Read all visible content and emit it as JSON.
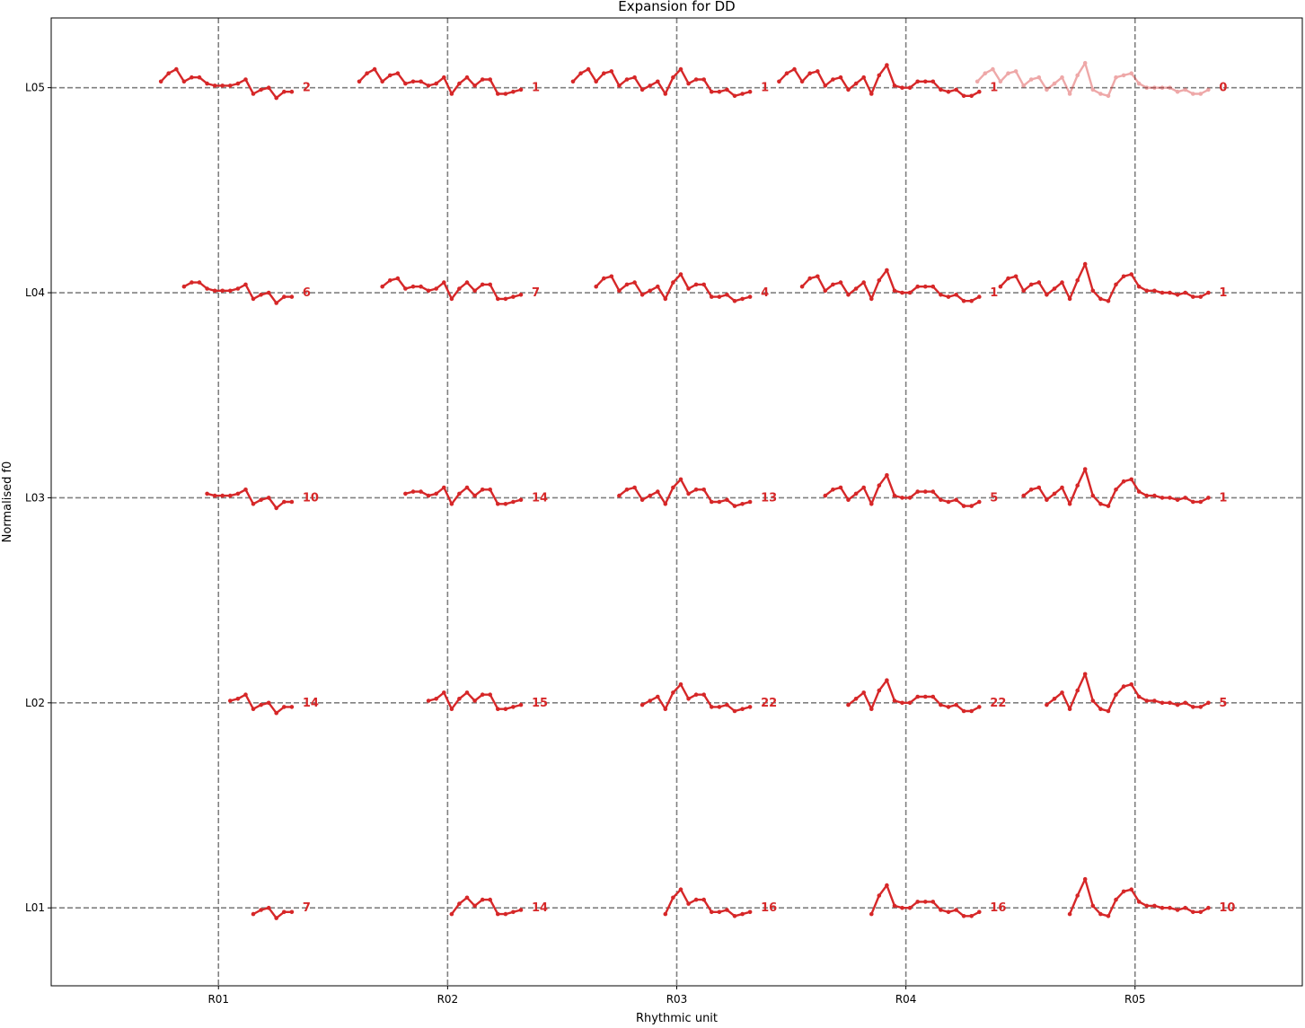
{
  "chart_data": {
    "type": "line",
    "title": "Expansion for DD",
    "xlabel": "Rhythmic unit",
    "ylabel": "Normalised f0",
    "x_ticks": [
      "R01",
      "R02",
      "R03",
      "R04",
      "R05"
    ],
    "y_ticks": [
      "L01",
      "L02",
      "L03",
      "L04",
      "L05"
    ],
    "xlim": [
      0.27,
      5.73
    ],
    "ylim": [
      0.62,
      5.34
    ],
    "grid": "dashed lines at each rhythmic unit and level",
    "line_color": "#d62728",
    "faded_alpha": 0.4,
    "contour_templates": {
      "A": [
        0.03,
        0.07,
        0.09,
        0.03,
        0.05,
        0.05,
        0.02,
        0.01,
        0.01,
        0.01,
        0.02,
        0.04,
        -0.03,
        -0.01,
        0.0,
        -0.05,
        -0.02,
        -0.02
      ],
      "B": [
        0.03,
        0.07,
        0.09,
        0.03,
        0.06,
        0.07,
        0.02,
        0.03,
        0.03,
        0.01,
        0.02,
        0.05,
        -0.03,
        0.02,
        0.05,
        0.01,
        0.04,
        0.04,
        -0.03,
        -0.03,
        -0.02,
        -0.01
      ],
      "C": [
        0.03,
        0.07,
        0.09,
        0.03,
        0.07,
        0.08,
        0.01,
        0.04,
        0.05,
        -0.01,
        0.01,
        0.03,
        -0.03,
        0.05,
        0.09,
        0.02,
        0.04,
        0.04,
        -0.02,
        -0.02,
        -0.01,
        -0.04,
        -0.03,
        -0.02
      ],
      "D": [
        0.03,
        0.07,
        0.09,
        0.03,
        0.07,
        0.08,
        0.01,
        0.04,
        0.05,
        -0.01,
        0.02,
        0.05,
        -0.03,
        0.06,
        0.11,
        0.01,
        0.0,
        0.0,
        0.03,
        0.03,
        0.03,
        -0.01,
        -0.02,
        -0.01,
        -0.04,
        -0.04,
        -0.02
      ],
      "E": [
        0.03,
        0.07,
        0.09,
        0.03,
        0.07,
        0.08,
        0.01,
        0.04,
        0.05,
        -0.01,
        0.02,
        0.05,
        -0.03,
        0.06,
        0.14,
        0.01,
        -0.03,
        -0.04,
        0.04,
        0.08,
        0.09,
        0.03,
        0.01,
        0.01,
        0.0,
        0.0,
        -0.01,
        0.0,
        -0.02,
        -0.02,
        0.0
      ],
      "F": [
        0.03,
        0.07,
        0.09,
        0.03,
        0.07,
        0.08,
        0.01,
        0.04,
        0.05,
        -0.01,
        0.02,
        0.05,
        -0.03,
        0.06,
        0.12,
        -0.01,
        -0.03,
        -0.04,
        0.05,
        0.06,
        0.07,
        0.02,
        0.0,
        0.0,
        0.0,
        0.0,
        -0.02,
        -0.01,
        -0.03,
        -0.03,
        -0.01
      ]
    },
    "series": [
      {
        "level": "L05",
        "unit": "R01",
        "count": "2",
        "faded": false,
        "template": "A"
      },
      {
        "level": "L05",
        "unit": "R02",
        "count": "1",
        "faded": false,
        "template": "B"
      },
      {
        "level": "L05",
        "unit": "R03",
        "count": "1",
        "faded": false,
        "template": "C"
      },
      {
        "level": "L05",
        "unit": "R04",
        "count": "1",
        "faded": false,
        "template": "D"
      },
      {
        "level": "L05",
        "unit": "R05",
        "count": "0",
        "faded": true,
        "template": "F"
      },
      {
        "level": "L04",
        "unit": "R01",
        "count": "6",
        "faded": false,
        "template": "A",
        "trim": 3
      },
      {
        "level": "L04",
        "unit": "R02",
        "count": "7",
        "faded": false,
        "template": "B",
        "trim": 3
      },
      {
        "level": "L04",
        "unit": "R03",
        "count": "4",
        "faded": false,
        "template": "C",
        "trim": 3
      },
      {
        "level": "L04",
        "unit": "R04",
        "count": "1",
        "faded": false,
        "template": "D",
        "trim": 3
      },
      {
        "level": "L04",
        "unit": "R05",
        "count": "1",
        "faded": false,
        "template": "E",
        "trim": 3
      },
      {
        "level": "L03",
        "unit": "R01",
        "count": "10",
        "faded": false,
        "template": "A",
        "trim": 6
      },
      {
        "level": "L03",
        "unit": "R02",
        "count": "14",
        "faded": false,
        "template": "B",
        "trim": 6
      },
      {
        "level": "L03",
        "unit": "R03",
        "count": "13",
        "faded": false,
        "template": "C",
        "trim": 6
      },
      {
        "level": "L03",
        "unit": "R04",
        "count": "5",
        "faded": false,
        "template": "D",
        "trim": 6
      },
      {
        "level": "L03",
        "unit": "R05",
        "count": "1",
        "faded": false,
        "template": "E",
        "trim": 6
      },
      {
        "level": "L02",
        "unit": "R01",
        "count": "14",
        "faded": false,
        "template": "A",
        "trim": 9
      },
      {
        "level": "L02",
        "unit": "R02",
        "count": "15",
        "faded": false,
        "template": "B",
        "trim": 9
      },
      {
        "level": "L02",
        "unit": "R03",
        "count": "22",
        "faded": false,
        "template": "C",
        "trim": 9
      },
      {
        "level": "L02",
        "unit": "R04",
        "count": "22",
        "faded": false,
        "template": "D",
        "trim": 9
      },
      {
        "level": "L02",
        "unit": "R05",
        "count": "5",
        "faded": false,
        "template": "E",
        "trim": 9
      },
      {
        "level": "L01",
        "unit": "R01",
        "count": "7",
        "faded": false,
        "template": "A",
        "trim": 12
      },
      {
        "level": "L01",
        "unit": "R02",
        "count": "14",
        "faded": false,
        "template": "B",
        "trim": 12
      },
      {
        "level": "L01",
        "unit": "R03",
        "count": "16",
        "faded": false,
        "template": "C",
        "trim": 12
      },
      {
        "level": "L01",
        "unit": "R04",
        "count": "16",
        "faded": false,
        "template": "D",
        "trim": 12
      },
      {
        "level": "L01",
        "unit": "R05",
        "count": "10",
        "faded": false,
        "template": "E",
        "trim": 12
      }
    ]
  }
}
